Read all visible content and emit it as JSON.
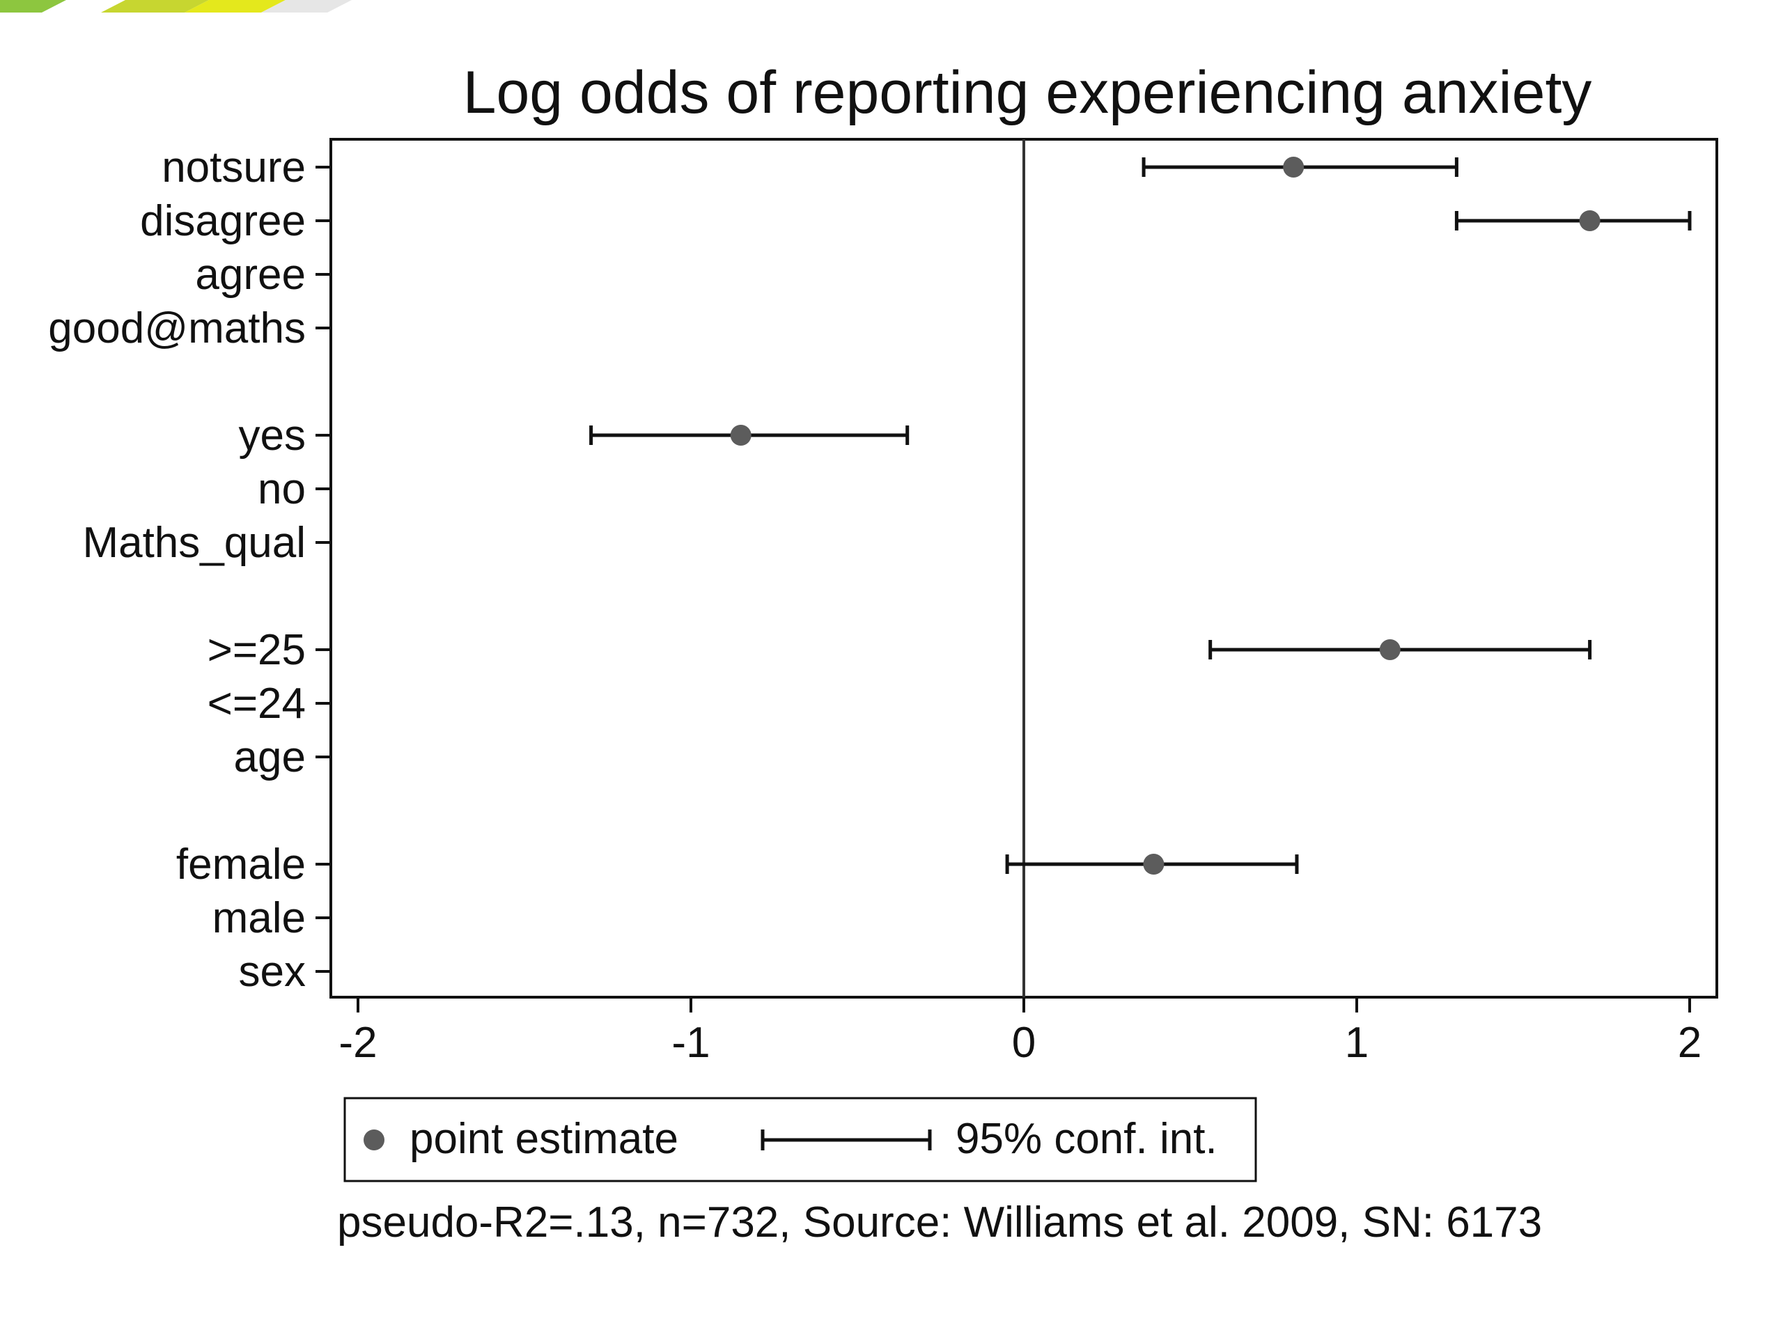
{
  "banner": {
    "colors": [
      "#8dc63f",
      "#c7d630",
      "#e4e81c",
      "#e6e6e6"
    ]
  },
  "chart_data": {
    "type": "scatter",
    "title": "Log odds of reporting experiencing anxiety",
    "footnote": "pseudo-R2=.13, n=732, Source: Williams et al. 2009, SN: 6173",
    "xlim": [
      -2.08,
      2.08
    ],
    "x_ticks": [
      -2,
      -1,
      0,
      1,
      2
    ],
    "x_tick_labels": [
      "-2",
      "-1",
      "0",
      "1",
      "2"
    ],
    "reference_line_x": 0,
    "grid": false,
    "legend": {
      "placement": "bottom",
      "items": [
        "point estimate",
        "95% conf. int."
      ]
    },
    "colors": {
      "point": "#5c5c5c",
      "ci": "#111111",
      "axis": "#111111"
    },
    "rows": [
      {
        "label": "notsure",
        "estimate": 0.81,
        "ci": [
          0.36,
          1.3
        ]
      },
      {
        "label": "disagree",
        "estimate": 1.7,
        "ci": [
          1.3,
          2.0
        ]
      },
      {
        "label": "agree",
        "estimate": null,
        "ci": null
      },
      {
        "label": "good@maths",
        "estimate": null,
        "ci": null
      },
      {
        "label": "",
        "gap": true
      },
      {
        "label": "yes",
        "estimate": -0.85,
        "ci": [
          -1.3,
          -0.35
        ]
      },
      {
        "label": "no",
        "estimate": null,
        "ci": null
      },
      {
        "label": "Maths_qual",
        "estimate": null,
        "ci": null
      },
      {
        "label": "",
        "gap": true
      },
      {
        "label": ">=25",
        "estimate": 1.1,
        "ci": [
          0.56,
          1.7
        ]
      },
      {
        "label": "<=24",
        "estimate": null,
        "ci": null
      },
      {
        "label": "age",
        "estimate": null,
        "ci": null
      },
      {
        "label": "",
        "gap": true
      },
      {
        "label": "female",
        "estimate": 0.39,
        "ci": [
          -0.05,
          0.82
        ]
      },
      {
        "label": "male",
        "estimate": null,
        "ci": null
      },
      {
        "label": "sex",
        "estimate": null,
        "ci": null
      }
    ]
  }
}
